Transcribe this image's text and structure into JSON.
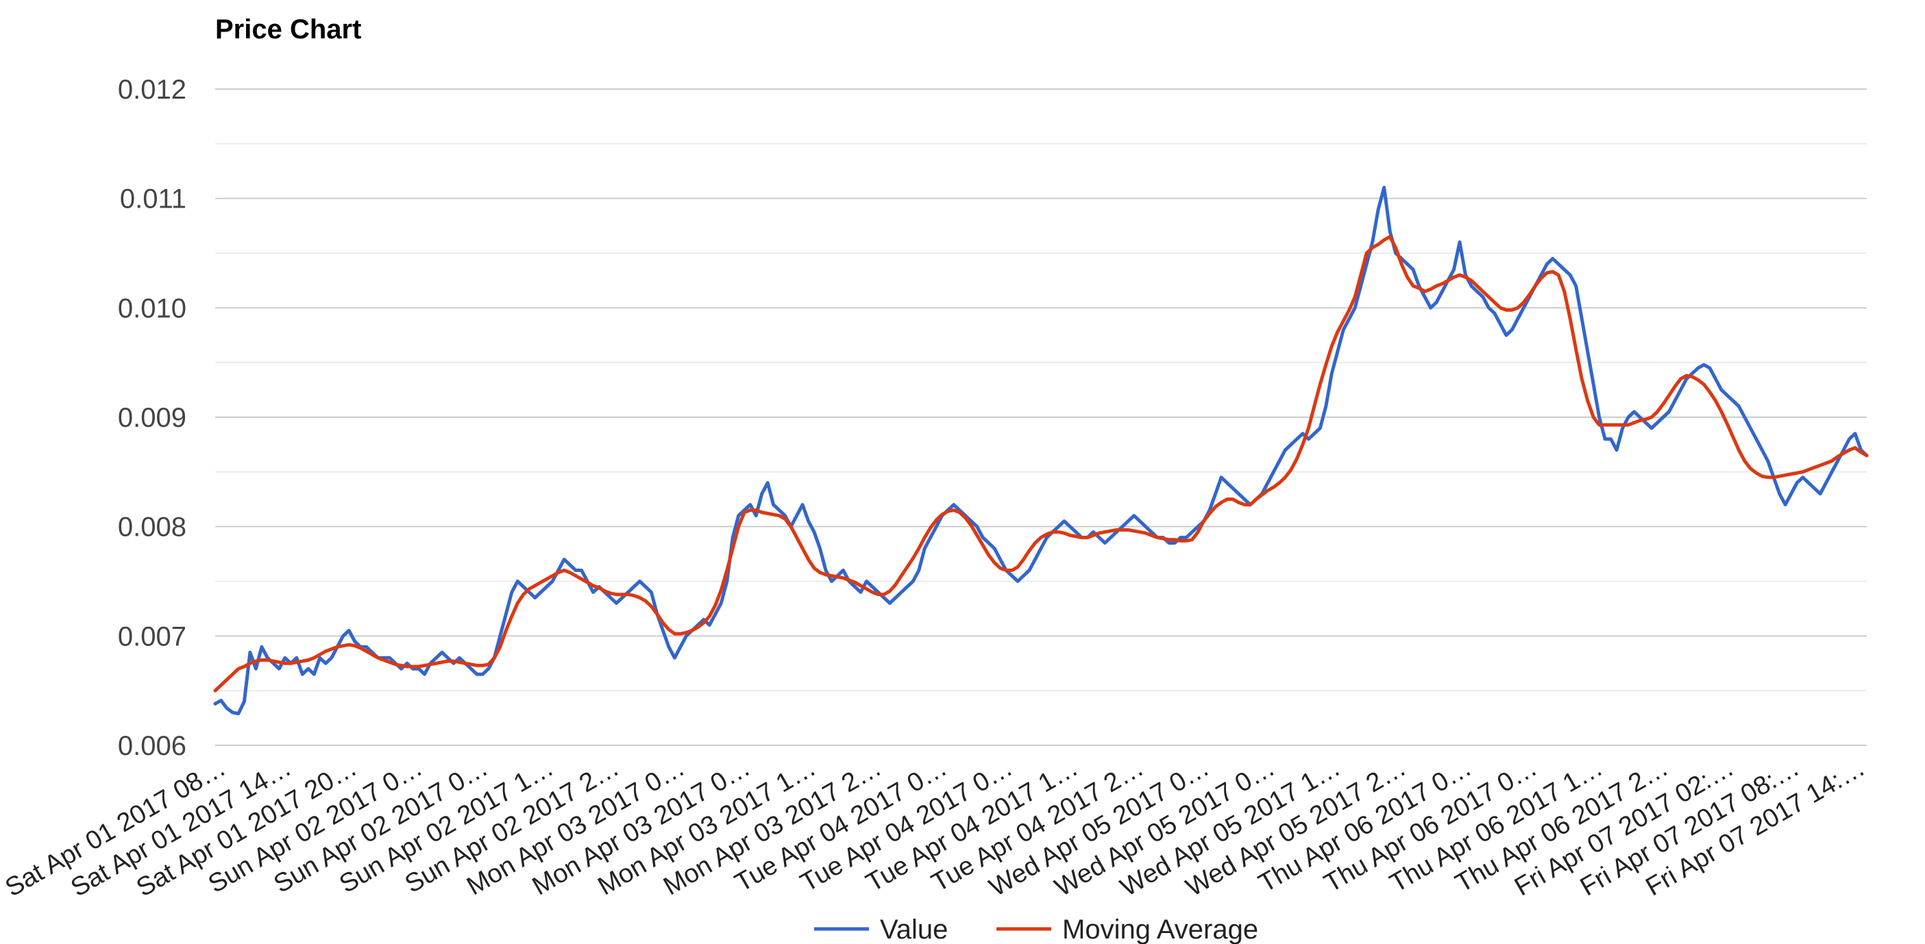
{
  "chart_data": {
    "type": "line",
    "title": "Price Chart",
    "xlabel": "",
    "ylabel": "",
    "ylim": [
      0.006,
      0.012
    ],
    "yticks": [
      "0.006",
      "0.007",
      "0.008",
      "0.009",
      "0.010",
      "0.011",
      "0.012"
    ],
    "grid": true,
    "legend_position": "bottom",
    "x_tick_labels": [
      "Sat Apr 01 2017 08…",
      "Sat Apr 01 2017 14…",
      "Sat Apr 01 2017 20…",
      "Sun Apr 02 2017 0…",
      "Sun Apr 02 2017 0…",
      "Sun Apr 02 2017 1…",
      "Sun Apr 02 2017 2…",
      "Mon Apr 03 2017 0…",
      "Mon Apr 03 2017 0…",
      "Mon Apr 03 2017 1…",
      "Mon Apr 03 2017 2…",
      "Tue Apr 04 2017 0…",
      "Tue Apr 04 2017 0…",
      "Tue Apr 04 2017 1…",
      "Tue Apr 04 2017 2…",
      "Wed Apr 05 2017 0…",
      "Wed Apr 05 2017 0…",
      "Wed Apr 05 2017 1…",
      "Wed Apr 05 2017 2…",
      "Thu Apr 06 2017 0…",
      "Thu Apr 06 2017 0…",
      "Thu Apr 06 2017 1…",
      "Thu Apr 06 2017 2…",
      "Fri Apr 07 2017 02:…",
      "Fri Apr 07 2017 08:…",
      "Fri Apr 07 2017 14:…"
    ],
    "series": [
      {
        "name": "Value",
        "color": "#3366cc",
        "values": [
          0.00638,
          0.00641,
          0.00634,
          0.0063,
          0.00629,
          0.0064,
          0.00685,
          0.0067,
          0.0069,
          0.0068,
          0.00675,
          0.0067,
          0.0068,
          0.00675,
          0.0068,
          0.00665,
          0.0067,
          0.00665,
          0.0068,
          0.00675,
          0.0068,
          0.0069,
          0.007,
          0.00705,
          0.00695,
          0.0069,
          0.0069,
          0.00685,
          0.0068,
          0.0068,
          0.0068,
          0.00675,
          0.0067,
          0.00675,
          0.0067,
          0.0067,
          0.00665,
          0.00675,
          0.0068,
          0.00685,
          0.0068,
          0.00675,
          0.0068,
          0.00675,
          0.0067,
          0.00665,
          0.00665,
          0.0067,
          0.0068,
          0.007,
          0.0072,
          0.0074,
          0.0075,
          0.00745,
          0.0074,
          0.00735,
          0.0074,
          0.00745,
          0.0075,
          0.0076,
          0.0077,
          0.00765,
          0.0076,
          0.0076,
          0.0075,
          0.0074,
          0.00745,
          0.0074,
          0.00735,
          0.0073,
          0.00735,
          0.0074,
          0.00745,
          0.0075,
          0.00745,
          0.0074,
          0.0072,
          0.00705,
          0.0069,
          0.0068,
          0.0069,
          0.007,
          0.00705,
          0.0071,
          0.00715,
          0.0071,
          0.0072,
          0.0073,
          0.0075,
          0.0079,
          0.0081,
          0.00815,
          0.0082,
          0.0081,
          0.0083,
          0.0084,
          0.0082,
          0.00815,
          0.0081,
          0.008,
          0.0081,
          0.0082,
          0.00805,
          0.00795,
          0.0078,
          0.0076,
          0.0075,
          0.00755,
          0.0076,
          0.0075,
          0.00745,
          0.0074,
          0.0075,
          0.00745,
          0.0074,
          0.00735,
          0.0073,
          0.00735,
          0.0074,
          0.00745,
          0.0075,
          0.0076,
          0.0078,
          0.0079,
          0.008,
          0.0081,
          0.00815,
          0.0082,
          0.00815,
          0.0081,
          0.00805,
          0.008,
          0.0079,
          0.00785,
          0.0078,
          0.0077,
          0.0076,
          0.00755,
          0.0075,
          0.00755,
          0.0076,
          0.0077,
          0.0078,
          0.0079,
          0.00795,
          0.008,
          0.00805,
          0.008,
          0.00795,
          0.0079,
          0.0079,
          0.00795,
          0.0079,
          0.00785,
          0.0079,
          0.00795,
          0.008,
          0.00805,
          0.0081,
          0.00805,
          0.008,
          0.00795,
          0.0079,
          0.0079,
          0.00785,
          0.00785,
          0.0079,
          0.0079,
          0.00795,
          0.008,
          0.00805,
          0.00815,
          0.0083,
          0.00845,
          0.0084,
          0.00835,
          0.0083,
          0.00825,
          0.0082,
          0.00825,
          0.0083,
          0.0084,
          0.0085,
          0.0086,
          0.0087,
          0.00875,
          0.0088,
          0.00885,
          0.0088,
          0.00885,
          0.0089,
          0.0091,
          0.0094,
          0.0096,
          0.0098,
          0.0099,
          0.01,
          0.0102,
          0.0104,
          0.0106,
          0.0109,
          0.0111,
          0.0107,
          0.0105,
          0.01045,
          0.0104,
          0.01035,
          0.0102,
          0.0101,
          0.01,
          0.01005,
          0.01015,
          0.01025,
          0.01035,
          0.0106,
          0.0103,
          0.0102,
          0.01015,
          0.0101,
          0.01,
          0.00995,
          0.00985,
          0.00975,
          0.0098,
          0.0099,
          0.01,
          0.0101,
          0.0102,
          0.0103,
          0.0104,
          0.01045,
          0.0104,
          0.01035,
          0.0103,
          0.0102,
          0.0099,
          0.0096,
          0.0093,
          0.009,
          0.0088,
          0.0088,
          0.0087,
          0.0089,
          0.009,
          0.00905,
          0.009,
          0.00895,
          0.0089,
          0.00895,
          0.009,
          0.00905,
          0.00915,
          0.00925,
          0.00935,
          0.0094,
          0.00945,
          0.00948,
          0.00945,
          0.00935,
          0.00925,
          0.0092,
          0.00915,
          0.0091,
          0.009,
          0.0089,
          0.0088,
          0.0087,
          0.0086,
          0.00845,
          0.0083,
          0.0082,
          0.0083,
          0.0084,
          0.00845,
          0.0084,
          0.00835,
          0.0083,
          0.0084,
          0.0085,
          0.0086,
          0.0087,
          0.0088,
          0.00885,
          0.0087,
          0.00865
        ]
      },
      {
        "name": "Moving Average",
        "color": "#dc3912",
        "values": [
          0.0065,
          0.00655,
          0.0066,
          0.00665,
          0.0067,
          0.00672,
          0.00675,
          0.00677,
          0.00678,
          0.00678,
          0.00677,
          0.00676,
          0.00675,
          0.00675,
          0.00676,
          0.00677,
          0.00678,
          0.0068,
          0.00683,
          0.00686,
          0.00688,
          0.0069,
          0.00691,
          0.00692,
          0.00691,
          0.00689,
          0.00686,
          0.00683,
          0.0068,
          0.00678,
          0.00676,
          0.00674,
          0.00673,
          0.00672,
          0.00672,
          0.00672,
          0.00673,
          0.00674,
          0.00675,
          0.00676,
          0.00677,
          0.00677,
          0.00676,
          0.00675,
          0.00674,
          0.00673,
          0.00673,
          0.00674,
          0.0068,
          0.0069,
          0.00705,
          0.00718,
          0.0073,
          0.00738,
          0.00743,
          0.00746,
          0.00749,
          0.00752,
          0.00755,
          0.00758,
          0.0076,
          0.00758,
          0.00755,
          0.00752,
          0.00749,
          0.00746,
          0.00744,
          0.00741,
          0.00739,
          0.00738,
          0.00738,
          0.00738,
          0.00737,
          0.00735,
          0.00732,
          0.00727,
          0.0072,
          0.00712,
          0.00706,
          0.00702,
          0.00702,
          0.00703,
          0.00705,
          0.00708,
          0.00712,
          0.00718,
          0.00728,
          0.00742,
          0.0076,
          0.0078,
          0.008,
          0.00813,
          0.00815,
          0.00815,
          0.00813,
          0.00812,
          0.00811,
          0.0081,
          0.00807,
          0.008,
          0.0079,
          0.0078,
          0.0077,
          0.00762,
          0.00758,
          0.00756,
          0.00755,
          0.00754,
          0.00753,
          0.00751,
          0.00749,
          0.00746,
          0.00743,
          0.0074,
          0.00738,
          0.00738,
          0.00741,
          0.00747,
          0.00755,
          0.00763,
          0.00771,
          0.0078,
          0.0079,
          0.00799,
          0.00806,
          0.00811,
          0.00814,
          0.00815,
          0.00813,
          0.00808,
          0.00801,
          0.00792,
          0.00783,
          0.00774,
          0.00767,
          0.00762,
          0.0076,
          0.0076,
          0.00763,
          0.0077,
          0.00778,
          0.00785,
          0.0079,
          0.00793,
          0.00795,
          0.00795,
          0.00794,
          0.00792,
          0.00791,
          0.0079,
          0.0079,
          0.00792,
          0.00794,
          0.00795,
          0.00796,
          0.00797,
          0.00797,
          0.00797,
          0.00796,
          0.00795,
          0.00794,
          0.00792,
          0.0079,
          0.00789,
          0.00788,
          0.00788,
          0.00787,
          0.00787,
          0.00788,
          0.00795,
          0.00805,
          0.00812,
          0.00818,
          0.00822,
          0.00825,
          0.00825,
          0.00822,
          0.0082,
          0.0082,
          0.00825,
          0.00829,
          0.00833,
          0.00836,
          0.0084,
          0.00845,
          0.00852,
          0.00862,
          0.00875,
          0.0089,
          0.0091,
          0.0093,
          0.00948,
          0.00965,
          0.00978,
          0.00988,
          0.00998,
          0.0101,
          0.0103,
          0.0105,
          0.01055,
          0.01058,
          0.01062,
          0.01065,
          0.01055,
          0.0104,
          0.01028,
          0.0102,
          0.01018,
          0.01015,
          0.01017,
          0.0102,
          0.01022,
          0.01025,
          0.01028,
          0.0103,
          0.01028,
          0.01025,
          0.0102,
          0.01015,
          0.0101,
          0.01005,
          0.01,
          0.00998,
          0.00998,
          0.01,
          0.01005,
          0.01012,
          0.0102,
          0.01027,
          0.01032,
          0.01033,
          0.0103,
          0.01015,
          0.0099,
          0.00962,
          0.00935,
          0.00915,
          0.009,
          0.00893,
          0.00893,
          0.00893,
          0.00893,
          0.00893,
          0.00893,
          0.00895,
          0.00897,
          0.00898,
          0.009,
          0.00905,
          0.00912,
          0.0092,
          0.00928,
          0.00935,
          0.00938,
          0.00937,
          0.00934,
          0.0093,
          0.00923,
          0.00915,
          0.00905,
          0.00894,
          0.00882,
          0.0087,
          0.0086,
          0.00853,
          0.00849,
          0.00846,
          0.00845,
          0.00845,
          0.00846,
          0.00847,
          0.00848,
          0.00849,
          0.0085,
          0.00852,
          0.00854,
          0.00856,
          0.00858,
          0.0086,
          0.00864,
          0.00867,
          0.0087,
          0.00872,
          0.00868,
          0.00865
        ]
      }
    ]
  }
}
